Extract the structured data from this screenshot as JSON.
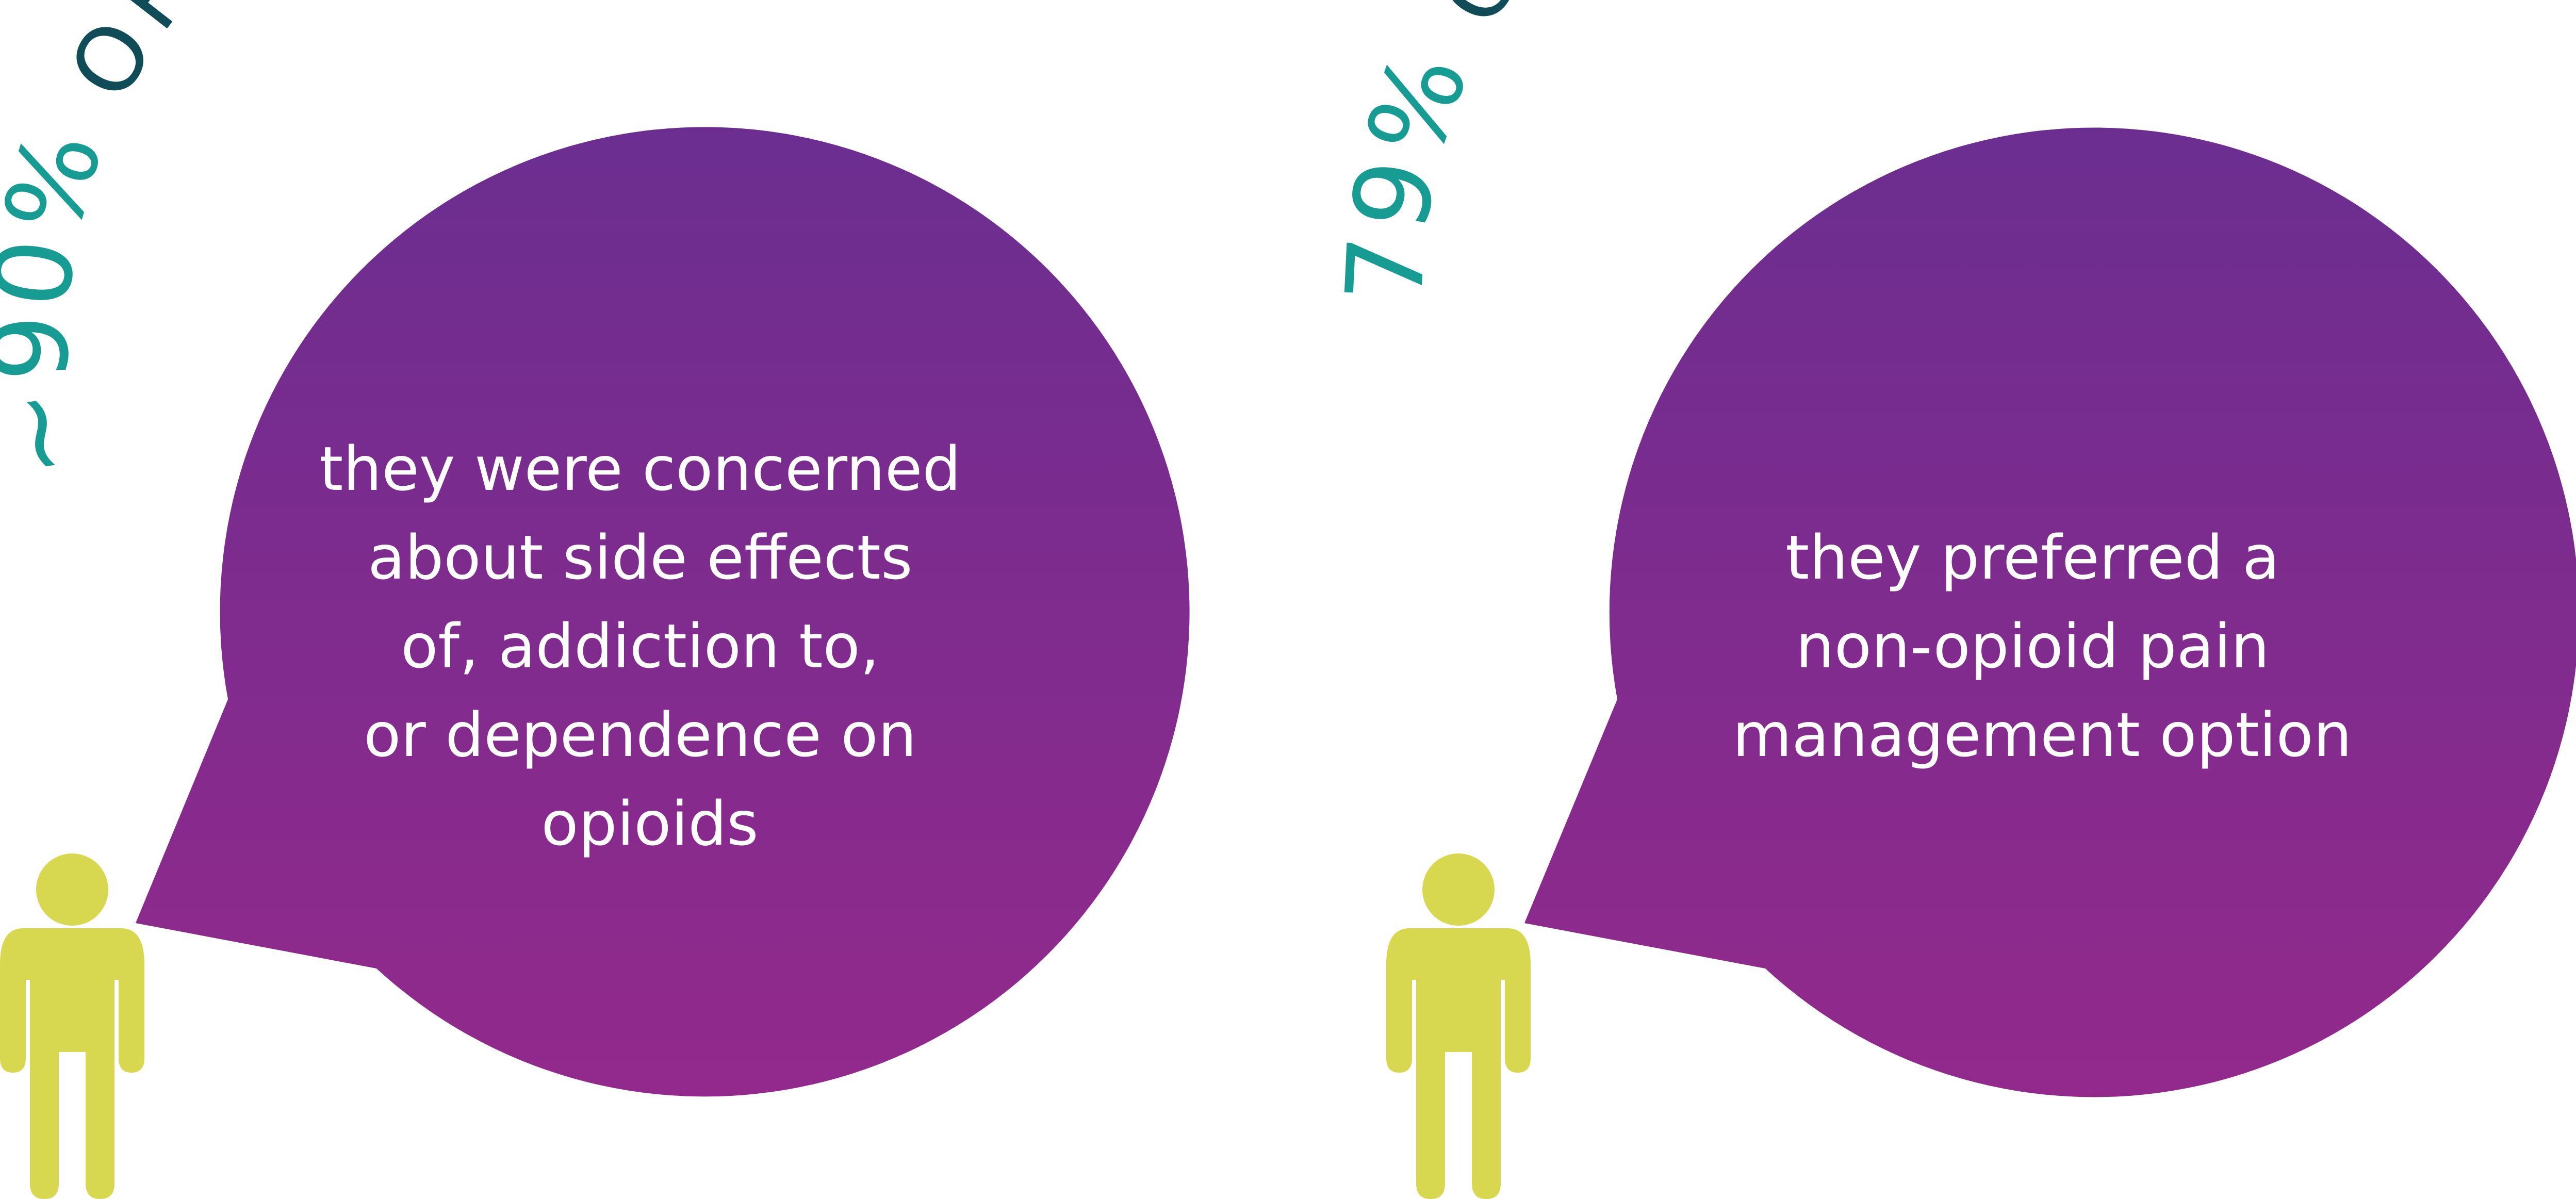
{
  "colors": {
    "bubble_top": "#6b2e90",
    "bubble_bottom": "#93298c",
    "figure": "#d7d84f",
    "percent_text": "#169c93",
    "headline_text": "#0f4c58",
    "bubble_text": "#ffffff"
  },
  "panels": [
    {
      "percent": "~90%",
      "headline": " OF PATIENTS SAID",
      "statement_lines": [
        "they were concerned",
        "about side effects",
        "of, addiction to,",
        "or dependence on",
        "opioids"
      ],
      "icon": "person-icon"
    },
    {
      "percent": "79%",
      "headline": " OF PATIENTS SAID",
      "statement_lines": [
        "they preferred a",
        "non-opioid pain",
        "management option"
      ],
      "icon": "person-icon"
    }
  ]
}
